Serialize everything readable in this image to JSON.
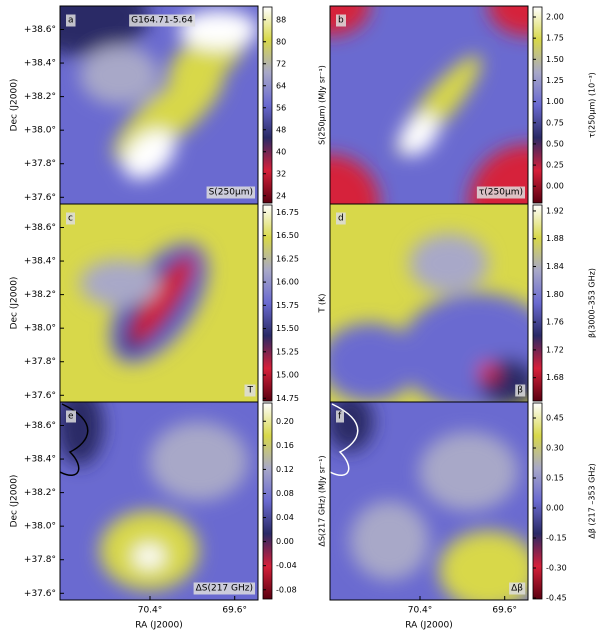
{
  "chart_data": [
    {
      "type": "heatmap",
      "panel_label": "a",
      "title": "G164.71-5.64",
      "map_label": "S(250μm)",
      "colorbar_label": "S(250μm) (MJy sr⁻¹)",
      "clim": [
        21,
        93
      ],
      "cticks": [
        24,
        32,
        40,
        48,
        56,
        64,
        72,
        80,
        88
      ],
      "ylabel": "Dec (J2000)",
      "ylim": [
        37.56,
        38.74
      ],
      "yticks": [
        {
          "value": 37.6,
          "label": "+37.6°"
        },
        {
          "value": 37.8,
          "label": "+37.8°"
        },
        {
          "value": 38.0,
          "label": "+38.0°"
        },
        {
          "value": 38.2,
          "label": "+38.2°"
        },
        {
          "value": 38.4,
          "label": "+38.4°"
        },
        {
          "value": 38.6,
          "label": "+38.6°"
        }
      ],
      "colormap": [
        "#5a0010",
        "#d6203a",
        "#2a2a66",
        "#6a6ad0",
        "#a8a8c8",
        "#d8d84a",
        "#ffffff"
      ]
    },
    {
      "type": "heatmap",
      "panel_label": "b",
      "map_label": "τ(250μm)",
      "colorbar_label": "τ(250μm) (10⁻³)",
      "clim": [
        -0.21,
        2.13
      ],
      "cticks": [
        {
          "value": 0,
          "label": "0.00"
        },
        0.25,
        {
          "value": 0.5,
          "label": "0.50"
        },
        0.75,
        {
          "value": 1,
          "label": "1.00"
        },
        1.25,
        {
          "value": 1.5,
          "label": "1.50"
        },
        1.75,
        {
          "value": 2,
          "label": "2.00"
        }
      ],
      "colormap": [
        "#5a0010",
        "#d6203a",
        "#2a2a66",
        "#6a6ad0",
        "#a8a8c8",
        "#d8d84a",
        "#ffffff"
      ]
    },
    {
      "type": "heatmap",
      "panel_label": "c",
      "map_label": "T",
      "colorbar_label": "T (K)",
      "clim": [
        14.71,
        16.84
      ],
      "cticks": [
        14.75,
        {
          "value": 15,
          "label": "15.00"
        },
        15.25,
        {
          "value": 15.5,
          "label": "15.50"
        },
        15.75,
        {
          "value": 16,
          "label": "16.00"
        },
        16.25,
        {
          "value": 16.5,
          "label": "16.50"
        },
        16.75
      ],
      "ylabel": "Dec (J2000)",
      "ylim": [
        37.56,
        38.74
      ],
      "yticks": [
        {
          "value": 37.6,
          "label": "+37.6°"
        },
        {
          "value": 37.8,
          "label": "+37.8°"
        },
        {
          "value": 38.0,
          "label": "+38.0°"
        },
        {
          "value": 38.2,
          "label": "+38.2°"
        },
        {
          "value": 38.4,
          "label": "+38.4°"
        },
        {
          "value": 38.6,
          "label": "+38.6°"
        }
      ],
      "colormap": [
        "#5a0010",
        "#d6203a",
        "#2a2a66",
        "#6a6ad0",
        "#a8a8c8",
        "#d8d84a",
        "#ffffff"
      ]
    },
    {
      "type": "heatmap",
      "panel_label": "d",
      "map_label": "β",
      "colorbar_label": "β(3000–353 GHz)",
      "clim": [
        1.645,
        1.93
      ],
      "cticks": [
        1.68,
        1.72,
        1.76,
        {
          "value": 1.8,
          "label": "1.80"
        },
        1.84,
        1.88,
        1.92
      ],
      "colormap": [
        "#5a0010",
        "#d6203a",
        "#2a2a66",
        "#6a6ad0",
        "#a8a8c8",
        "#d8d84a",
        "#ffffff"
      ]
    },
    {
      "type": "heatmap",
      "panel_label": "e",
      "map_label": "ΔS(217 GHz)",
      "colorbar_label": "ΔS(217 GHz) (MJy sr⁻¹)",
      "clim": [
        -0.097,
        0.232
      ],
      "cticks": [
        -0.08,
        -0.04,
        {
          "value": 0,
          "label": "0.00"
        },
        0.04,
        0.08,
        0.12,
        0.16,
        {
          "value": 0.2,
          "label": "0.20"
        }
      ],
      "ylabel": "Dec (J2000)",
      "ylim": [
        37.56,
        38.74
      ],
      "yticks": [
        {
          "value": 37.6,
          "label": "+37.6°"
        },
        {
          "value": 37.8,
          "label": "+37.8°"
        },
        {
          "value": 38.0,
          "label": "+38.0°"
        },
        {
          "value": 38.2,
          "label": "+38.2°"
        },
        {
          "value": 38.4,
          "label": "+38.4°"
        },
        {
          "value": 38.6,
          "label": "+38.6°"
        }
      ],
      "xlabel": "RA (J2000)",
      "xlim": [
        71.25,
        69.38
      ],
      "xticks": [
        {
          "value": 70.4,
          "label": "70.4°"
        },
        {
          "value": 69.6,
          "label": "69.6°"
        }
      ],
      "colormap": [
        "#5a0010",
        "#d6203a",
        "#2a2a66",
        "#6a6ad0",
        "#a8a8c8",
        "#d8d84a",
        "#ffffff"
      ]
    },
    {
      "type": "heatmap",
      "panel_label": "f",
      "map_label": "Δβ",
      "colorbar_label": "Δβ (217 –353 GHz)",
      "clim": [
        -0.46,
        0.53
      ],
      "cticks": [
        -0.45,
        {
          "value": -0.3,
          "label": "-0.30"
        },
        -0.15,
        {
          "value": 0,
          "label": "0.00"
        },
        0.15,
        {
          "value": 0.3,
          "label": "0.30"
        },
        0.45
      ],
      "xlabel": "RA (J2000)",
      "xlim": [
        71.25,
        69.38
      ],
      "xticks": [
        {
          "value": 70.4,
          "label": "70.4°"
        },
        {
          "value": 69.6,
          "label": "69.6°"
        }
      ],
      "colormap": [
        "#5a0010",
        "#d6203a",
        "#2a2a66",
        "#6a6ad0",
        "#a8a8c8",
        "#d8d84a",
        "#ffffff"
      ]
    }
  ]
}
